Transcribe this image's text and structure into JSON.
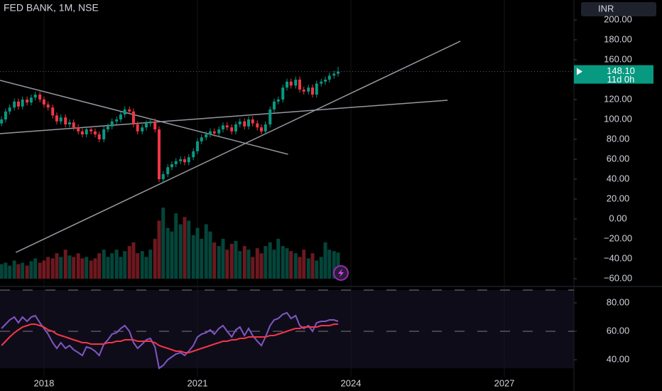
{
  "chart_data": {
    "type": "candlestick",
    "title": "FED BANK, 1M, NSE",
    "currency": "INR",
    "price_tag": {
      "value": 148.1,
      "label": "148.10"
    },
    "countdown": "11d 0h",
    "up_color": "#089981",
    "down_color": "#f23645",
    "xlim": [
      2017.14,
      2028.36
    ],
    "xticks": [
      2018,
      2021,
      2024,
      2027
    ],
    "ylim": [
      -65.7,
      220
    ],
    "yticks": [
      {
        "value": 200,
        "label": "200.00"
      },
      {
        "value": 180,
        "label": "180.00"
      },
      {
        "value": 160,
        "label": "160.00"
      },
      {
        "value": 120,
        "label": "120.00"
      },
      {
        "value": 100,
        "label": "100.00"
      },
      {
        "value": 80,
        "label": "80.00"
      },
      {
        "value": 60,
        "label": "60.00"
      },
      {
        "value": 40,
        "label": "40.00"
      },
      {
        "value": 20,
        "label": "20.00"
      },
      {
        "value": 0,
        "label": "0.00"
      },
      {
        "value": -20,
        "label": "−20.00"
      },
      {
        "value": -40,
        "label": "−40.00"
      },
      {
        "value": -60,
        "label": "−60.00"
      }
    ],
    "x": [
      2017.17,
      2017.25,
      2017.33,
      2017.42,
      2017.5,
      2017.58,
      2017.67,
      2017.75,
      2017.83,
      2017.92,
      2018,
      2018.08,
      2018.17,
      2018.25,
      2018.33,
      2018.42,
      2018.5,
      2018.58,
      2018.67,
      2018.75,
      2018.83,
      2018.92,
      2019,
      2019.08,
      2019.17,
      2019.25,
      2019.33,
      2019.42,
      2019.5,
      2019.58,
      2019.67,
      2019.75,
      2019.83,
      2019.92,
      2020,
      2020.08,
      2020.17,
      2020.25,
      2020.33,
      2020.42,
      2020.5,
      2020.58,
      2020.67,
      2020.75,
      2020.83,
      2020.92,
      2021,
      2021.08,
      2021.17,
      2021.25,
      2021.33,
      2021.42,
      2021.5,
      2021.58,
      2021.67,
      2021.75,
      2021.83,
      2021.92,
      2022,
      2022.08,
      2022.17,
      2022.25,
      2022.33,
      2022.42,
      2022.5,
      2022.58,
      2022.67,
      2022.75,
      2022.83,
      2022.92,
      2023,
      2023.08,
      2023.17,
      2023.25,
      2023.33,
      2023.42,
      2023.5,
      2023.58,
      2023.67,
      2023.75
    ],
    "open": [
      96,
      100,
      108,
      112,
      118,
      113,
      120,
      117,
      122,
      125,
      120,
      115,
      112,
      104,
      98,
      102,
      95,
      97,
      92,
      88,
      85,
      90,
      88,
      85,
      80,
      90,
      93,
      98,
      100,
      105,
      110,
      108,
      95,
      88,
      92,
      96,
      98,
      90,
      40,
      45,
      52,
      55,
      58,
      60,
      57,
      62,
      68,
      78,
      82,
      85,
      88,
      86,
      90,
      94,
      92,
      88,
      95,
      98,
      93,
      100,
      96,
      92,
      88,
      95,
      110,
      118,
      120,
      132,
      138,
      134,
      140,
      130,
      128,
      132,
      125,
      136,
      138,
      140,
      144,
      146
    ],
    "high": [
      103,
      111,
      115,
      121,
      121,
      123,
      123,
      125,
      128,
      128,
      123,
      118,
      115,
      107,
      105,
      105,
      100,
      100,
      95,
      91,
      93,
      93,
      91,
      88,
      93,
      96,
      101,
      103,
      108,
      113,
      113,
      111,
      98,
      95,
      99,
      101,
      101,
      93,
      48,
      55,
      58,
      61,
      63,
      63,
      65,
      71,
      81,
      85,
      88,
      91,
      91,
      93,
      97,
      97,
      95,
      98,
      101,
      101,
      103,
      103,
      99,
      95,
      98,
      113,
      121,
      123,
      135,
      141,
      141,
      143,
      143,
      133,
      135,
      135,
      139,
      141,
      143,
      147,
      149,
      153
    ],
    "low": [
      93,
      97,
      105,
      109,
      110,
      110,
      114,
      114,
      119,
      117,
      112,
      109,
      101,
      95,
      95,
      92,
      92,
      89,
      85,
      82,
      82,
      85,
      82,
      77,
      77,
      87,
      90,
      95,
      97,
      102,
      105,
      92,
      85,
      85,
      89,
      93,
      87,
      37,
      37,
      42,
      49,
      52,
      55,
      54,
      54,
      59,
      65,
      75,
      79,
      82,
      83,
      83,
      87,
      89,
      85,
      85,
      92,
      90,
      90,
      93,
      89,
      85,
      85,
      92,
      107,
      115,
      117,
      129,
      131,
      131,
      127,
      125,
      125,
      122,
      122,
      133,
      135,
      137,
      141,
      143
    ],
    "close": [
      100,
      108,
      112,
      118,
      113,
      120,
      117,
      122,
      125,
      120,
      115,
      112,
      104,
      98,
      102,
      95,
      97,
      92,
      88,
      85,
      90,
      88,
      85,
      80,
      90,
      93,
      98,
      100,
      105,
      110,
      108,
      95,
      88,
      92,
      96,
      98,
      90,
      40,
      45,
      52,
      55,
      58,
      60,
      57,
      62,
      68,
      78,
      82,
      85,
      88,
      86,
      90,
      94,
      92,
      88,
      95,
      98,
      93,
      100,
      96,
      92,
      88,
      95,
      110,
      118,
      120,
      132,
      138,
      134,
      140,
      130,
      128,
      132,
      125,
      136,
      138,
      140,
      144,
      146,
      148.1
    ],
    "volume": [
      20,
      22,
      18,
      25,
      20,
      22,
      18,
      24,
      28,
      22,
      25,
      30,
      28,
      35,
      30,
      40,
      32,
      30,
      35,
      28,
      30,
      25,
      28,
      35,
      40,
      30,
      35,
      40,
      30,
      38,
      45,
      50,
      35,
      38,
      30,
      40,
      55,
      80,
      98,
      70,
      65,
      90,
      75,
      85,
      80,
      60,
      70,
      55,
      75,
      65,
      50,
      45,
      55,
      40,
      48,
      52,
      38,
      45,
      40,
      30,
      42,
      35,
      45,
      50,
      40,
      55,
      45,
      42,
      38,
      35,
      30,
      40,
      28,
      35,
      25,
      30,
      50,
      40,
      38,
      36
    ],
    "trend_lines": [
      {
        "x": [
          2017.14,
          2022.77
        ],
        "y": [
          139.3,
          65
        ]
      },
      {
        "x": [
          2017.45,
          2026.14
        ],
        "y": [
          -33.6,
          178.6
        ]
      },
      {
        "x": [
          2017.14,
          2025.89
        ],
        "y": [
          85.7,
          119.3
        ]
      }
    ],
    "rsi": {
      "ylim": [
        34,
        89
      ],
      "yticks": [
        {
          "value": 80,
          "label": "80.00"
        },
        {
          "value": 60,
          "label": "60.00"
        },
        {
          "value": 40,
          "label": "40.00"
        }
      ],
      "bands": [
        60
      ],
      "series": [
        {
          "color": "#7e57c2",
          "values": [
            62,
            65,
            68,
            70,
            66,
            70,
            67,
            70,
            71,
            66,
            62,
            58,
            52,
            48,
            52,
            48,
            50,
            47,
            45,
            43,
            49,
            48,
            46,
            43,
            51,
            54,
            58,
            59,
            62,
            64,
            60,
            52,
            48,
            51,
            54,
            55,
            49,
            34,
            36,
            40,
            42,
            44,
            45,
            43,
            46,
            50,
            56,
            58,
            59,
            61,
            58,
            62,
            64,
            60,
            56,
            61,
            63,
            57,
            62,
            57,
            53,
            50,
            56,
            64,
            68,
            69,
            72,
            73,
            69,
            71,
            64,
            62,
            64,
            60,
            66,
            67,
            67,
            68,
            68,
            67
          ]
        },
        {
          "color": "#f23645",
          "values": [
            50,
            53,
            56,
            59,
            61,
            63,
            64,
            65,
            65,
            64,
            63,
            61,
            60,
            58,
            57,
            56,
            55,
            54,
            53,
            52,
            52,
            51,
            51,
            51,
            51,
            52,
            52,
            53,
            53,
            54,
            54,
            54,
            53,
            53,
            53,
            53,
            52,
            50,
            49,
            48,
            47,
            46,
            46,
            45,
            45,
            46,
            47,
            48,
            49,
            50,
            51,
            52,
            53,
            53,
            54,
            54,
            55,
            55,
            56,
            56,
            56,
            56,
            56,
            57,
            57,
            58,
            59,
            60,
            61,
            62,
            62,
            63,
            63,
            63,
            63,
            64,
            64,
            64,
            65,
            65
          ]
        }
      ]
    }
  }
}
